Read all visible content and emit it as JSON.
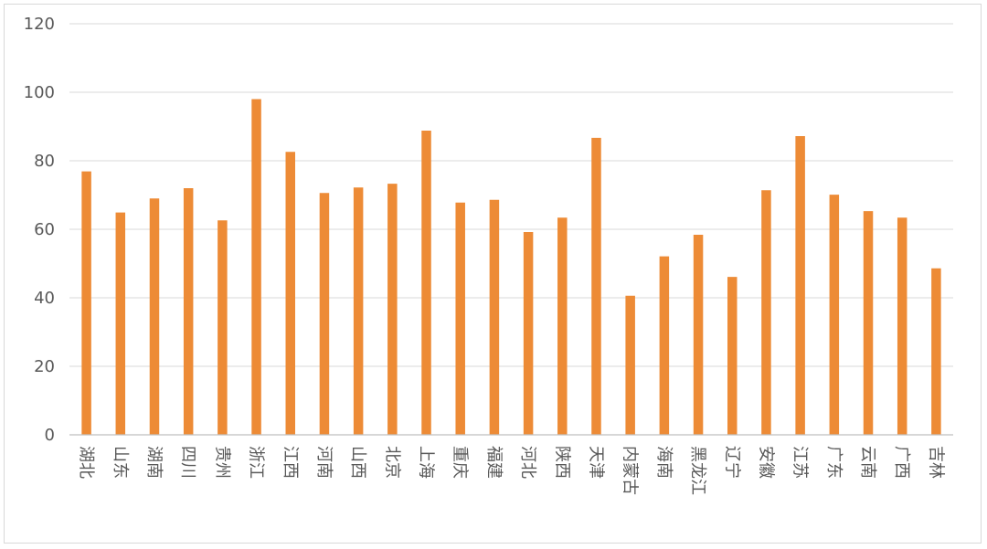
{
  "chart_data": {
    "type": "bar",
    "title": "",
    "xlabel": "",
    "ylabel": "",
    "ylim": [
      0,
      120
    ],
    "yticks": [
      0,
      20,
      40,
      60,
      80,
      100,
      120
    ],
    "grid": true,
    "legend": "none",
    "bar_color": "#ED8B36",
    "grid_color": "#d9d9d9",
    "axis_color": "#bfbfbf",
    "categories": [
      "湖北",
      "山东",
      "湖南",
      "四川",
      "贵州",
      "浙江",
      "江西",
      "河南",
      "山西",
      "北京",
      "上海",
      "重庆",
      "福建",
      "河北",
      "陕西",
      "天津",
      "内蒙古",
      "海南",
      "黑龙江",
      "辽宁",
      "安徽",
      "江苏",
      "广东",
      "云南",
      "广西",
      "吉林"
    ],
    "values": [
      76.9,
      64.9,
      69.0,
      72.0,
      62.6,
      98.0,
      82.6,
      70.6,
      72.2,
      73.3,
      88.8,
      67.8,
      68.6,
      59.2,
      63.4,
      86.7,
      40.6,
      52.1,
      58.4,
      46.1,
      71.4,
      87.2,
      70.1,
      65.3,
      63.4,
      48.6
    ]
  }
}
